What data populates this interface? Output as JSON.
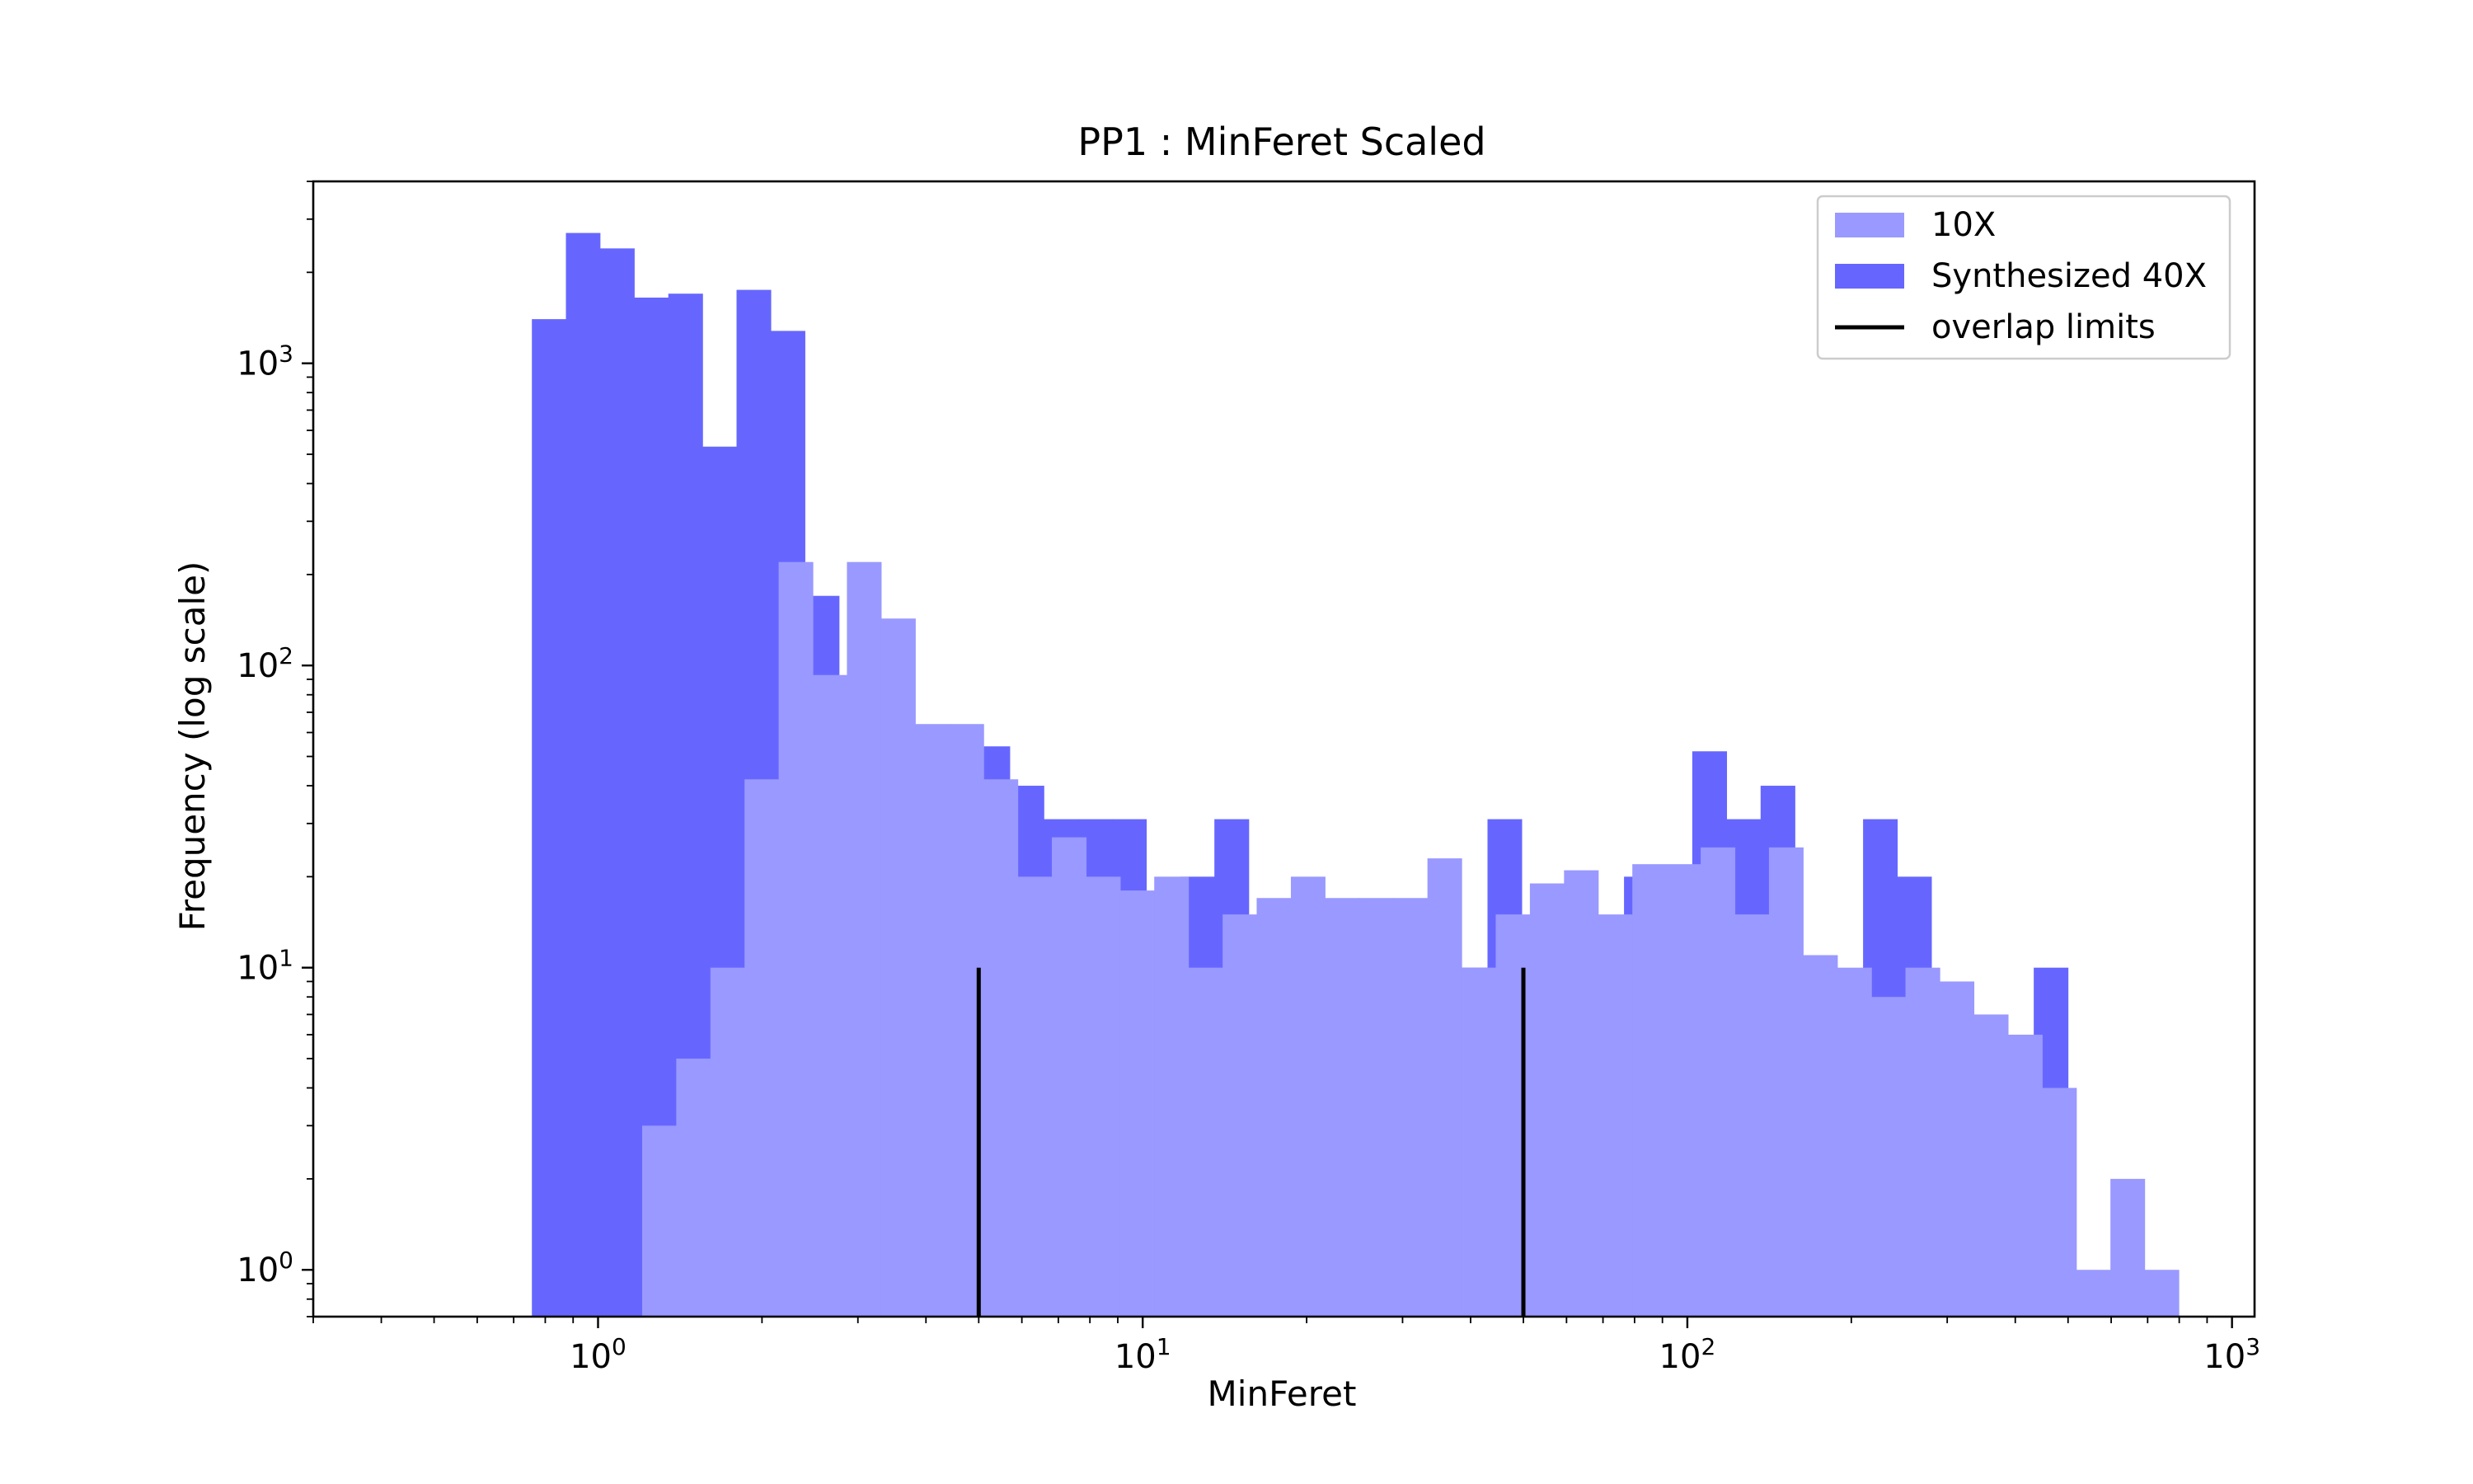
{
  "chart_data": {
    "type": "bar",
    "title": "PP1 : MinFeret Scaled",
    "xlabel": "MinFeret",
    "ylabel": "Frequency (log scale)",
    "x_scale": "log",
    "y_scale": "log",
    "xlim": [
      0.3,
      1100
    ],
    "ylim": [
      0.7,
      4000
    ],
    "grid": false,
    "legend_position": "top-right",
    "x_ticks": [
      {
        "value": 1,
        "base": "10",
        "exp": "0"
      },
      {
        "value": 10,
        "base": "10",
        "exp": "1"
      },
      {
        "value": 100,
        "base": "10",
        "exp": "2"
      },
      {
        "value": 1000,
        "base": "10",
        "exp": "3"
      }
    ],
    "y_ticks": [
      {
        "value": 1,
        "base": "10",
        "exp": "0"
      },
      {
        "value": 10,
        "base": "10",
        "exp": "1"
      },
      {
        "value": 100,
        "base": "10",
        "exp": "2"
      },
      {
        "value": 1000,
        "base": "10",
        "exp": "3"
      }
    ],
    "series": [
      {
        "name": "Synthesized 40X",
        "color": "#6666ff",
        "bins": [
          [
            0.756,
            0.873,
            1400
          ],
          [
            0.873,
            1.008,
            2700
          ],
          [
            1.008,
            1.165,
            2400
          ],
          [
            1.165,
            1.346,
            1650
          ],
          [
            1.346,
            1.555,
            1700
          ],
          [
            1.555,
            1.796,
            530
          ],
          [
            1.796,
            2.075,
            1750
          ],
          [
            2.075,
            2.397,
            1280
          ],
          [
            2.397,
            2.769,
            170
          ],
          [
            2.769,
            3.199,
            70
          ],
          [
            3.199,
            3.695,
            100
          ],
          [
            3.695,
            4.269,
            56
          ],
          [
            4.269,
            4.932,
            31
          ],
          [
            4.932,
            5.698,
            54
          ],
          [
            5.698,
            6.582,
            40
          ],
          [
            6.582,
            7.604,
            31
          ],
          [
            7.604,
            8.785,
            31
          ],
          [
            8.785,
            10.15,
            31
          ],
          [
            10.15,
            11.72,
            10
          ],
          [
            11.72,
            13.54,
            20
          ],
          [
            13.54,
            15.65,
            31
          ],
          [
            15.65,
            18.07,
            10
          ],
          [
            18.07,
            20.88,
            10
          ],
          [
            20.88,
            24.12,
            10
          ],
          [
            24.12,
            27.86,
            0
          ],
          [
            27.86,
            32.19,
            10
          ],
          [
            32.19,
            37.19,
            10
          ],
          [
            37.19,
            42.96,
            10
          ],
          [
            42.96,
            49.63,
            31
          ],
          [
            49.63,
            57.33,
            0
          ],
          [
            57.33,
            66.23,
            0
          ],
          [
            66.23,
            76.51,
            10
          ],
          [
            76.51,
            88.39,
            20
          ],
          [
            88.39,
            102.1,
            20
          ],
          [
            102.1,
            118.0,
            52
          ],
          [
            118.0,
            136.3,
            31
          ],
          [
            136.3,
            157.5,
            40
          ],
          [
            157.5,
            181.9,
            10
          ],
          [
            181.9,
            210.2,
            0
          ],
          [
            210.2,
            242.8,
            31
          ],
          [
            242.8,
            280.5,
            20
          ],
          [
            280.5,
            324.1,
            0
          ],
          [
            324.1,
            374.4,
            0
          ],
          [
            374.4,
            432.5,
            0
          ],
          [
            432.5,
            499.7,
            10
          ]
        ]
      },
      {
        "name": "10X",
        "color": "#9999ff",
        "bins": [
          [
            1.205,
            1.392,
            3
          ],
          [
            1.392,
            1.608,
            5
          ],
          [
            1.608,
            1.858,
            10
          ],
          [
            1.858,
            2.146,
            42
          ],
          [
            2.146,
            2.479,
            220
          ],
          [
            2.479,
            2.864,
            93
          ],
          [
            2.864,
            3.309,
            220
          ],
          [
            3.309,
            3.823,
            143
          ],
          [
            3.823,
            4.417,
            64
          ],
          [
            4.417,
            5.103,
            64
          ],
          [
            5.103,
            5.895,
            42
          ],
          [
            5.895,
            6.811,
            20
          ],
          [
            6.811,
            7.869,
            27
          ],
          [
            7.869,
            9.091,
            20
          ],
          [
            9.091,
            10.5,
            18
          ],
          [
            10.5,
            12.13,
            20
          ],
          [
            12.13,
            14.02,
            10
          ],
          [
            14.02,
            16.19,
            15
          ],
          [
            16.19,
            18.71,
            17
          ],
          [
            18.71,
            21.61,
            20
          ],
          [
            21.61,
            24.97,
            17
          ],
          [
            24.97,
            28.85,
            17
          ],
          [
            28.85,
            33.33,
            17
          ],
          [
            33.33,
            38.5,
            23
          ],
          [
            38.5,
            44.48,
            10
          ],
          [
            44.48,
            51.39,
            15
          ],
          [
            51.39,
            59.37,
            19
          ],
          [
            59.37,
            68.59,
            21
          ],
          [
            68.59,
            79.25,
            15
          ],
          [
            79.25,
            91.55,
            22
          ],
          [
            91.55,
            105.8,
            22
          ],
          [
            105.8,
            122.2,
            25
          ],
          [
            122.2,
            141.2,
            15
          ],
          [
            141.2,
            163.1,
            25
          ],
          [
            163.1,
            188.5,
            11
          ],
          [
            188.5,
            217.7,
            10
          ],
          [
            217.7,
            251.5,
            8
          ],
          [
            251.5,
            290.6,
            10
          ],
          [
            290.6,
            335.7,
            9
          ],
          [
            335.7,
            387.9,
            7
          ],
          [
            387.9,
            448.1,
            6
          ],
          [
            448.1,
            517.7,
            4
          ],
          [
            517.7,
            598.1,
            1
          ],
          [
            598.1,
            691.0,
            2
          ],
          [
            691.0,
            798.3,
            1
          ]
        ]
      }
    ],
    "overlap_limits": {
      "name": "overlap limits",
      "color": "#000000",
      "x": [
        5,
        50
      ],
      "y_top": 10
    }
  }
}
